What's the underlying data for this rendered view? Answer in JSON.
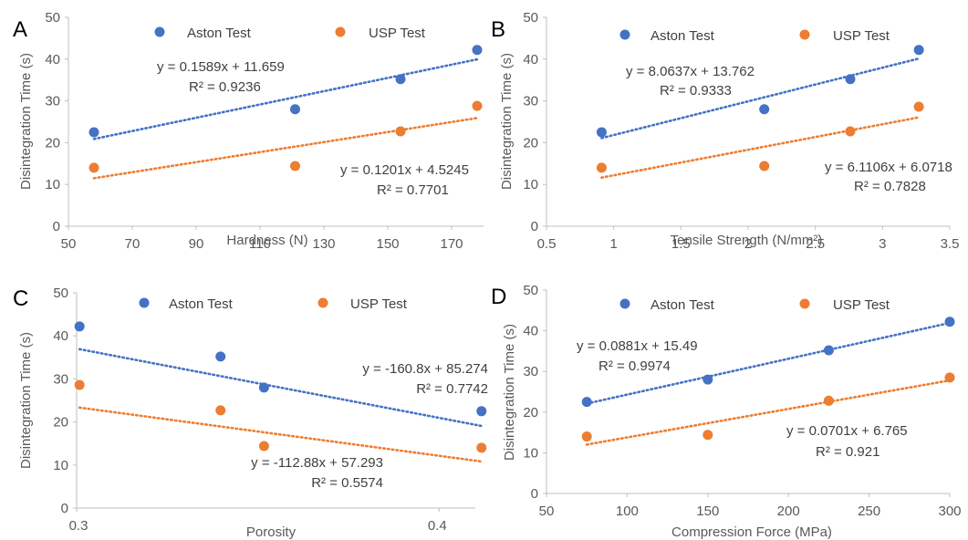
{
  "colors": {
    "aston": "#4472C4",
    "usp": "#ED7D31",
    "axis": "#BFBFBF",
    "text": "#595959"
  },
  "chart_data": [
    {
      "panel": "A",
      "type": "scatter",
      "xlabel": "Hardness (N)",
      "ylabel": "Disintegration Time (s)",
      "xlim": [
        50,
        180
      ],
      "ylim": [
        0,
        50
      ],
      "xticks": [
        50,
        70,
        90,
        110,
        130,
        150,
        170
      ],
      "yticks": [
        0,
        10,
        20,
        30,
        40,
        50
      ],
      "legend_position": "top",
      "series": [
        {
          "name": "Aston Test",
          "color": "#4472C4",
          "points": [
            [
              58,
              22.5
            ],
            [
              121,
              28
            ],
            [
              154,
              35.2
            ],
            [
              178,
              42.2
            ]
          ],
          "trendline": {
            "slope": 0.1589,
            "intercept": 11.659,
            "x_range": [
              58,
              178
            ]
          },
          "equation": "y = 0.1589x + 11.659",
          "r2": "R² = 0.9236"
        },
        {
          "name": "USP Test",
          "color": "#ED7D31",
          "points": [
            [
              58,
              14
            ],
            [
              121,
              14.4
            ],
            [
              154,
              22.7
            ],
            [
              178,
              28.8
            ]
          ],
          "trendline": {
            "slope": 0.1201,
            "intercept": 4.5245,
            "x_range": [
              58,
              178
            ]
          },
          "equation": "y = 0.1201x + 4.5245",
          "r2": "R² = 0.7701"
        }
      ]
    },
    {
      "panel": "B",
      "type": "scatter",
      "xlabel": "Tensile Strength (N/mm²)",
      "ylabel": "Disintegration Time (s)",
      "xlim": [
        0.5,
        3.5
      ],
      "ylim": [
        0,
        50
      ],
      "xticks": [
        0.5,
        1.0,
        1.5,
        2.0,
        2.5,
        3.0,
        3.5
      ],
      "yticks": [
        0,
        10,
        20,
        30,
        40,
        50
      ],
      "legend_position": "top",
      "series": [
        {
          "name": "Aston Test",
          "color": "#4472C4",
          "points": [
            [
              0.91,
              22.5
            ],
            [
              2.12,
              28
            ],
            [
              2.76,
              35.2
            ],
            [
              3.27,
              42.2
            ]
          ],
          "trendline": {
            "slope": 8.0637,
            "intercept": 13.762,
            "x_range": [
              0.91,
              3.27
            ]
          },
          "equation": "y = 8.0637x + 13.762",
          "r2": "R² = 0.9333"
        },
        {
          "name": "USP Test",
          "color": "#ED7D31",
          "points": [
            [
              0.91,
              14
            ],
            [
              2.12,
              14.4
            ],
            [
              2.76,
              22.7
            ],
            [
              3.27,
              28.6
            ]
          ],
          "trendline": {
            "slope": 6.1106,
            "intercept": 6.0718,
            "x_range": [
              0.91,
              3.27
            ]
          },
          "equation": "y = 6.1106x + 6.0718",
          "r2": "R² = 0.7828"
        }
      ]
    },
    {
      "panel": "C",
      "type": "scatter",
      "xlabel": "Porosity",
      "ylabel": "Disintegration Time (s)",
      "xlim": [
        0.3,
        0.41
      ],
      "ylim": [
        0,
        50
      ],
      "xticks": [
        0.3,
        0.4
      ],
      "xtick_labels": [
        "0.3",
        "0.4"
      ],
      "yticks": [
        0,
        10,
        20,
        30,
        40,
        50
      ],
      "legend_position": "top",
      "series": [
        {
          "name": "Aston Test",
          "color": "#4472C4",
          "points": [
            [
              0.3008,
              42.2
            ],
            [
              0.3397,
              35.2
            ],
            [
              0.3517,
              28
            ],
            [
              0.4117,
              22.5
            ]
          ],
          "trendline": {
            "slope": -160.8,
            "intercept": 85.274,
            "x_range": [
              0.3008,
              0.4117
            ]
          },
          "equation": "y = -160.8x + 85.274",
          "r2": "R² = 0.7742"
        },
        {
          "name": "USP Test",
          "color": "#ED7D31",
          "points": [
            [
              0.3008,
              28.6
            ],
            [
              0.3397,
              22.7
            ],
            [
              0.3517,
              14.4
            ],
            [
              0.4117,
              14
            ]
          ],
          "trendline": {
            "slope": -112.88,
            "intercept": 57.293,
            "x_range": [
              0.3008,
              0.4117
            ]
          },
          "equation": "y = -112.88x + 57.293",
          "r2": "R² = 0.5574"
        }
      ]
    },
    {
      "panel": "D",
      "type": "scatter",
      "xlabel": "Compression Force (MPa)",
      "ylabel": "Disintegration Time (s)",
      "xlim": [
        50,
        300
      ],
      "ylim": [
        0,
        50
      ],
      "xticks": [
        50,
        100,
        150,
        200,
        250,
        300
      ],
      "yticks": [
        0,
        10,
        20,
        30,
        40,
        50
      ],
      "legend_position": "top",
      "series": [
        {
          "name": "Aston Test",
          "color": "#4472C4",
          "points": [
            [
              75,
              22.5
            ],
            [
              150,
              28
            ],
            [
              225,
              35.2
            ],
            [
              300,
              42.2
            ]
          ],
          "trendline": {
            "slope": 0.0881,
            "intercept": 15.49,
            "x_range": [
              75,
              300
            ]
          },
          "equation": "y = 0.0881x + 15.49",
          "r2": "R² = 0.9974"
        },
        {
          "name": "USP Test",
          "color": "#ED7D31",
          "points": [
            [
              75,
              14
            ],
            [
              150,
              14.4
            ],
            [
              225,
              22.8
            ],
            [
              300,
              28.5
            ]
          ],
          "trendline": {
            "slope": 0.0701,
            "intercept": 6.765,
            "x_range": [
              75,
              300
            ]
          },
          "equation": "y = 0.0701x + 6.765",
          "r2": "R² = 0.921"
        }
      ]
    }
  ]
}
